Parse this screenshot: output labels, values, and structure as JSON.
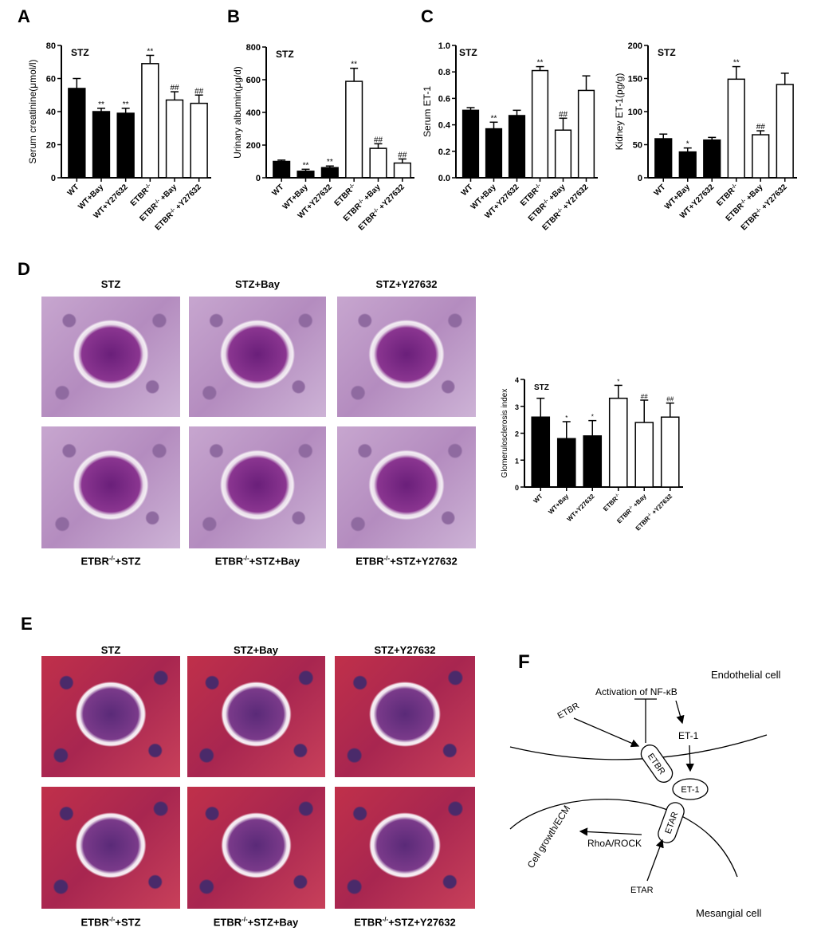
{
  "panels": {
    "A": "A",
    "B": "B",
    "C": "C",
    "D": "D",
    "E": "E",
    "F": "F"
  },
  "colors": {
    "treated_wt": "#000000",
    "etbr_ko": "#ffffff",
    "axis": "#000000"
  },
  "chart_data": [
    {
      "id": "A",
      "type": "bar",
      "annotation": "STZ",
      "ylabel": "Serum creatinine(μmol/l)",
      "ylim": [
        0,
        80
      ],
      "yticks": [
        0,
        20,
        40,
        60,
        80
      ],
      "categories": [
        "WT",
        "WT+Bay",
        "WT+Y27632",
        "ETBR-/-",
        "ETBR-/- +Bay",
        "ETBR-/- +Y27632"
      ],
      "values": [
        54,
        40,
        39,
        69,
        47,
        45
      ],
      "errors": [
        6,
        2,
        3,
        5,
        5,
        5
      ],
      "significance": [
        "",
        "**",
        "**",
        "**",
        "##",
        "##"
      ],
      "fills": [
        "#000000",
        "#000000",
        "#000000",
        "#ffffff",
        "#ffffff",
        "#ffffff"
      ]
    },
    {
      "id": "B",
      "type": "bar",
      "annotation": "STZ",
      "ylabel": "Urinary albumin(μg/d)",
      "ylim": [
        0,
        800
      ],
      "yticks": [
        0,
        200,
        400,
        600,
        800
      ],
      "categories": [
        "WT",
        "WT+Bay",
        "WT+Y27632",
        "ETBR-/-",
        "ETBR-/- +Bay",
        "ETBR-/- +Y27632"
      ],
      "values": [
        100,
        40,
        62,
        590,
        180,
        90
      ],
      "errors": [
        8,
        12,
        10,
        80,
        28,
        25
      ],
      "significance": [
        "",
        "**",
        "**",
        "**",
        "##",
        "##"
      ],
      "fills": [
        "#000000",
        "#000000",
        "#000000",
        "#ffffff",
        "#ffffff",
        "#ffffff"
      ]
    },
    {
      "id": "C1",
      "type": "bar",
      "annotation": "STZ",
      "ylabel": "Serum ET-1",
      "ylim": [
        0,
        1.0
      ],
      "yticks": [
        "0.0",
        "0.2",
        "0.4",
        "0.6",
        "0.8",
        "1.0"
      ],
      "categories": [
        "WT",
        "WT+Bay",
        "WT+Y27632",
        "ETBR-/-",
        "ETBR-/- +Bay",
        "ETBR-/- +Y27632"
      ],
      "values": [
        0.51,
        0.37,
        0.47,
        0.81,
        0.36,
        0.66
      ],
      "errors": [
        0.02,
        0.05,
        0.04,
        0.03,
        0.09,
        0.11
      ],
      "significance": [
        "",
        "**",
        "",
        "**",
        "##",
        ""
      ],
      "fills": [
        "#000000",
        "#000000",
        "#000000",
        "#ffffff",
        "#ffffff",
        "#ffffff"
      ]
    },
    {
      "id": "C2",
      "type": "bar",
      "annotation": "STZ",
      "ylabel": "Kidney ET-1(pg/g)",
      "ylim": [
        0,
        200
      ],
      "yticks": [
        0,
        50,
        100,
        150,
        200
      ],
      "categories": [
        "WT",
        "WT+Bay",
        "WT+Y27632",
        "ETBR-/-",
        "ETBR-/- +Bay",
        "ETBR-/- +Y27632"
      ],
      "values": [
        59,
        39,
        57,
        149,
        65,
        141
      ],
      "errors": [
        7,
        6,
        4,
        19,
        6,
        17
      ],
      "significance": [
        "",
        "*",
        "",
        "**",
        "##",
        ""
      ],
      "fills": [
        "#000000",
        "#000000",
        "#000000",
        "#ffffff",
        "#ffffff",
        "#ffffff"
      ]
    },
    {
      "id": "D",
      "type": "bar",
      "annotation": "STZ",
      "ylabel": "Glomerulosclerosis index",
      "ylim": [
        0,
        4
      ],
      "yticks": [
        0,
        1,
        2,
        3,
        4
      ],
      "categories": [
        "WT",
        "WT+Bay",
        "WT+Y27632",
        "ETBR-/-",
        "ETBR-/- +Bay",
        "ETBR-/- +Y27632"
      ],
      "values": [
        2.6,
        1.8,
        1.9,
        3.3,
        2.4,
        2.6
      ],
      "errors": [
        0.7,
        0.63,
        0.57,
        0.48,
        0.83,
        0.52
      ],
      "significance": [
        "",
        "*",
        "*",
        "*",
        "##",
        "##"
      ],
      "fills": [
        "#000000",
        "#000000",
        "#000000",
        "#ffffff",
        "#ffffff",
        "#ffffff"
      ]
    }
  ],
  "histology_D": {
    "top": [
      "STZ",
      "STZ+Bay",
      "STZ+Y27632"
    ],
    "bottom": [
      {
        "pre": "ETBR",
        "sup": "-/-",
        "post": "+STZ"
      },
      {
        "pre": "ETBR",
        "sup": "-/-",
        "post": "+STZ+Bay"
      },
      {
        "pre": "ETBR",
        "sup": "-/-",
        "post": "+STZ+Y27632"
      }
    ]
  },
  "histology_E": {
    "top": [
      "STZ",
      "STZ+Bay",
      "STZ+Y27632"
    ],
    "bottom": [
      {
        "pre": "ETBR",
        "sup": "-/-",
        "post": "+STZ"
      },
      {
        "pre": "ETBR",
        "sup": "-/-",
        "post": "+STZ+Bay"
      },
      {
        "pre": "ETBR",
        "sup": "-/-",
        "post": "+STZ+Y27632"
      }
    ]
  },
  "diagram": {
    "endothelial": "Endothelial cell",
    "mesangial": "Mesangial cell",
    "activation": "Activation of  NF-κB",
    "et1_top": "ET-1",
    "etbr_label": "ETBR",
    "etbr_receptor": "ETBR",
    "et1_ligand": "ET-1",
    "etar_receptor": "ETAR",
    "rhoa": "RhoA/ROCK",
    "cell_growth": "Cell growth/ECM",
    "etar_label": "ETAR"
  }
}
